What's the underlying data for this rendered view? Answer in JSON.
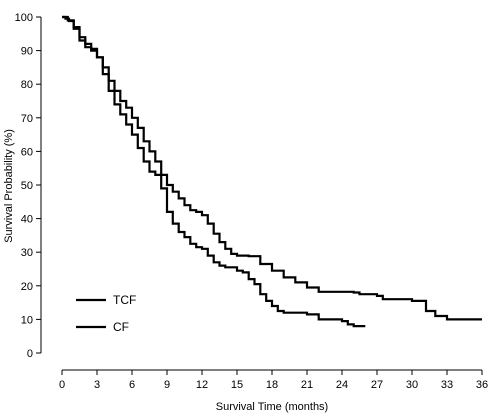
{
  "chart_data": {
    "type": "line",
    "xlabel": "Survival Time (months)",
    "ylabel": "Survival Probability (%)",
    "xlim": [
      0,
      36
    ],
    "ylim": [
      0,
      100
    ],
    "x_ticks": [
      0,
      3,
      6,
      9,
      12,
      15,
      18,
      21,
      24,
      27,
      30,
      33,
      36
    ],
    "y_ticks": [
      0,
      10,
      20,
      30,
      40,
      50,
      60,
      70,
      80,
      90,
      100
    ],
    "legend_position": "bottom-left",
    "grid": false,
    "series": [
      {
        "name": "TCF",
        "color": "#000000",
        "points": [
          [
            0,
            100
          ],
          [
            0.3,
            99.5
          ],
          [
            0.6,
            98.8
          ],
          [
            1.0,
            96.5
          ],
          [
            1.5,
            94
          ],
          [
            2.0,
            92
          ],
          [
            2.5,
            90.5
          ],
          [
            3.0,
            88
          ],
          [
            3.5,
            85
          ],
          [
            4.0,
            81
          ],
          [
            4.5,
            78
          ],
          [
            5.0,
            75
          ],
          [
            5.5,
            73
          ],
          [
            6.0,
            70
          ],
          [
            6.5,
            67
          ],
          [
            7.0,
            63
          ],
          [
            7.5,
            60
          ],
          [
            8.0,
            57
          ],
          [
            8.5,
            53
          ],
          [
            9.0,
            50
          ],
          [
            9.5,
            48
          ],
          [
            10.0,
            46
          ],
          [
            10.5,
            44
          ],
          [
            11.0,
            42.5
          ],
          [
            11.5,
            42
          ],
          [
            12.0,
            41
          ],
          [
            12.5,
            38.5
          ],
          [
            13.0,
            35.5
          ],
          [
            13.5,
            33
          ],
          [
            14.0,
            31
          ],
          [
            14.5,
            29.5
          ],
          [
            15.0,
            29
          ],
          [
            16.0,
            28.8
          ],
          [
            17.0,
            26.5
          ],
          [
            18.0,
            24.5
          ],
          [
            19.0,
            22.5
          ],
          [
            20.0,
            21
          ],
          [
            21.0,
            19.5
          ],
          [
            22.0,
            18.2
          ],
          [
            25.0,
            18
          ],
          [
            25.5,
            17.5
          ],
          [
            27.0,
            17
          ],
          [
            27.5,
            16
          ],
          [
            30.0,
            15.5
          ],
          [
            31.0,
            15.5
          ],
          [
            31.2,
            12.5
          ],
          [
            32.0,
            11
          ],
          [
            33.0,
            10
          ],
          [
            36.0,
            10
          ]
        ]
      },
      {
        "name": "CF",
        "color": "#000000",
        "points": [
          [
            0,
            100
          ],
          [
            0.5,
            99
          ],
          [
            1.0,
            97
          ],
          [
            1.5,
            93
          ],
          [
            2.0,
            91
          ],
          [
            2.5,
            90
          ],
          [
            3.0,
            88
          ],
          [
            3.5,
            83
          ],
          [
            4.0,
            78
          ],
          [
            4.5,
            74
          ],
          [
            5.0,
            71
          ],
          [
            5.5,
            68
          ],
          [
            6.0,
            65
          ],
          [
            6.5,
            61
          ],
          [
            7.0,
            57
          ],
          [
            7.5,
            54
          ],
          [
            8.0,
            53
          ],
          [
            8.5,
            49
          ],
          [
            9.0,
            42
          ],
          [
            9.5,
            38.5
          ],
          [
            10.0,
            36
          ],
          [
            10.5,
            34.5
          ],
          [
            11.0,
            32.5
          ],
          [
            11.5,
            31.5
          ],
          [
            12.0,
            31
          ],
          [
            12.5,
            29
          ],
          [
            13.0,
            27
          ],
          [
            13.5,
            26
          ],
          [
            14.0,
            25.5
          ],
          [
            15.0,
            24.5
          ],
          [
            15.5,
            24
          ],
          [
            16.0,
            22
          ],
          [
            16.5,
            20.5
          ],
          [
            17.0,
            17.5
          ],
          [
            17.5,
            15.5
          ],
          [
            18.0,
            14
          ],
          [
            18.5,
            12.5
          ],
          [
            19.0,
            12
          ],
          [
            21.0,
            11.5
          ],
          [
            22.0,
            10
          ],
          [
            24.0,
            9.5
          ],
          [
            24.5,
            8.5
          ],
          [
            25.0,
            8
          ],
          [
            26.0,
            8
          ]
        ]
      }
    ]
  }
}
